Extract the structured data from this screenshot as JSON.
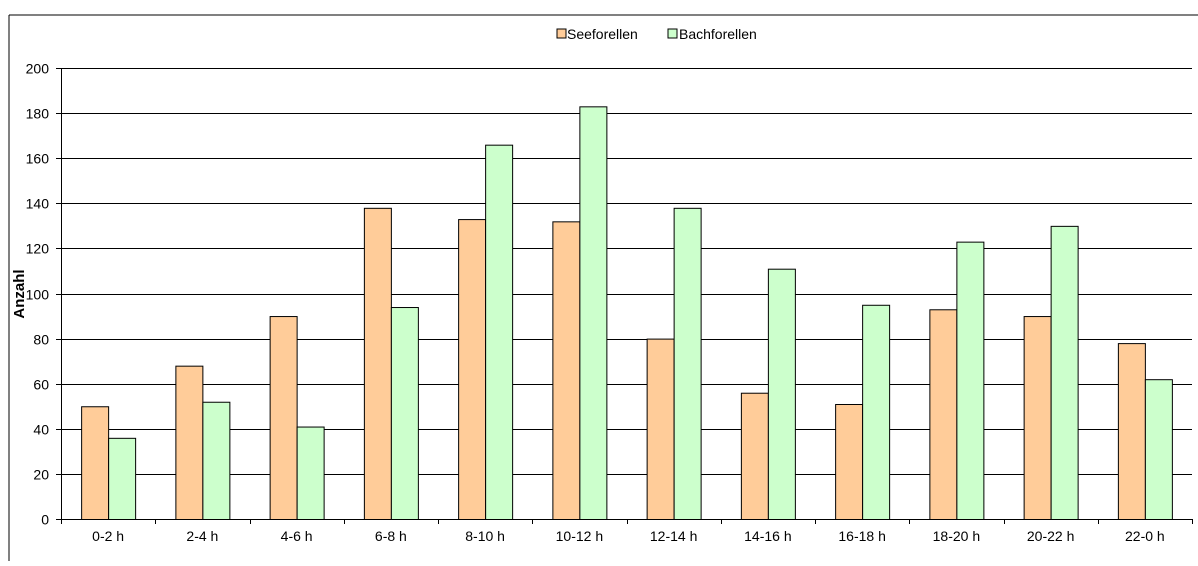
{
  "chart_data": {
    "type": "bar",
    "title": "",
    "xlabel": "",
    "ylabel": "Anzahl",
    "ylim": [
      0,
      200
    ],
    "yticks": [
      0,
      20,
      40,
      60,
      80,
      100,
      120,
      140,
      160,
      180,
      200
    ],
    "grid": true,
    "legend_position": "top-center",
    "categories": [
      "0-2 h",
      "2-4 h",
      "4-6 h",
      "6-8 h",
      "8-10 h",
      "10-12 h",
      "12-14 h",
      "14-16 h",
      "16-18 h",
      "18-20 h",
      "20-22 h",
      "22-0 h"
    ],
    "series": [
      {
        "name": "Seeforellen",
        "color": "#FFCC99",
        "values": [
          50,
          68,
          90,
          138,
          133,
          132,
          80,
          56,
          51,
          93,
          90,
          78
        ]
      },
      {
        "name": "Bachforellen",
        "color": "#CCFFCC",
        "values": [
          36,
          52,
          41,
          94,
          166,
          183,
          138,
          111,
          95,
          123,
          130,
          62
        ]
      }
    ]
  }
}
